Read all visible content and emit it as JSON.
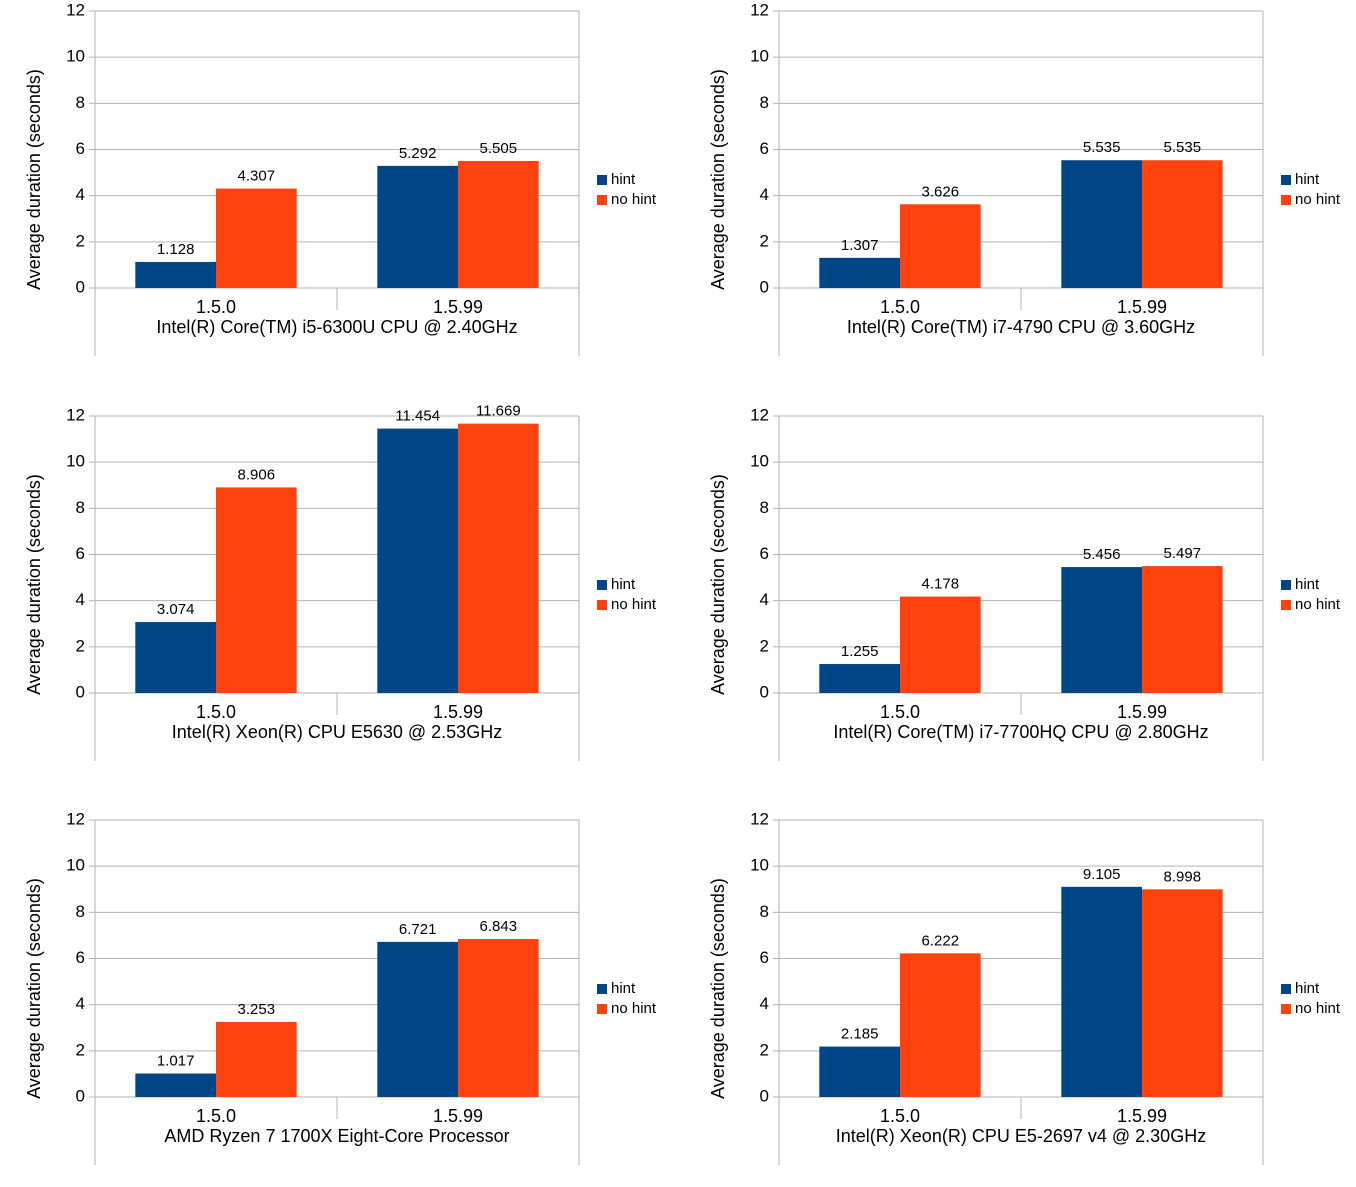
{
  "chart_data": [
    {
      "type": "bar",
      "ylabel": "Average duration (seconds)",
      "xlabel": "Intel(R) Core(TM) i5-6300U CPU @ 2.40GHz",
      "categories": [
        "1.5.0",
        "1.5.99"
      ],
      "series": [
        {
          "name": "hint",
          "color": "#004586",
          "values": [
            1.128,
            5.292
          ]
        },
        {
          "name": "no hint",
          "color": "#ff420e",
          "values": [
            4.307,
            5.505
          ]
        }
      ],
      "ylim": [
        0,
        12
      ],
      "yticks": [
        0,
        2,
        4,
        6,
        8,
        10,
        12
      ],
      "grid": true
    },
    {
      "type": "bar",
      "ylabel": "Average duration (seconds)",
      "xlabel": "Intel(R) Core(TM) i7-4790 CPU @ 3.60GHz",
      "categories": [
        "1.5.0",
        "1.5.99"
      ],
      "series": [
        {
          "name": "hint",
          "color": "#004586",
          "values": [
            1.307,
            5.535
          ]
        },
        {
          "name": "no hint",
          "color": "#ff420e",
          "values": [
            3.626,
            5.535
          ]
        }
      ],
      "ylim": [
        0,
        12
      ],
      "yticks": [
        0,
        2,
        4,
        6,
        8,
        10,
        12
      ],
      "grid": true
    },
    {
      "type": "bar",
      "ylabel": "Average duration (seconds)",
      "xlabel": "Intel(R) Xeon(R) CPU E5630 @ 2.53GHz",
      "categories": [
        "1.5.0",
        "1.5.99"
      ],
      "series": [
        {
          "name": "hint",
          "color": "#004586",
          "values": [
            3.074,
            11.454
          ]
        },
        {
          "name": "no hint",
          "color": "#ff420e",
          "values": [
            8.906,
            11.669
          ]
        }
      ],
      "ylim": [
        0,
        12
      ],
      "yticks": [
        0,
        2,
        4,
        6,
        8,
        10,
        12
      ],
      "grid": true
    },
    {
      "type": "bar",
      "ylabel": "Average duration (seconds)",
      "xlabel": "Intel(R) Core(TM) i7-7700HQ CPU @ 2.80GHz",
      "categories": [
        "1.5.0",
        "1.5.99"
      ],
      "series": [
        {
          "name": "hint",
          "color": "#004586",
          "values": [
            1.255,
            5.456
          ]
        },
        {
          "name": "no hint",
          "color": "#ff420e",
          "values": [
            4.178,
            5.497
          ]
        }
      ],
      "ylim": [
        0,
        12
      ],
      "yticks": [
        0,
        2,
        4,
        6,
        8,
        10,
        12
      ],
      "grid": true
    },
    {
      "type": "bar",
      "ylabel": "Average duration (seconds)",
      "xlabel": "AMD Ryzen 7 1700X Eight-Core Processor",
      "categories": [
        "1.5.0",
        "1.5.99"
      ],
      "series": [
        {
          "name": "hint",
          "color": "#004586",
          "values": [
            1.017,
            6.721
          ]
        },
        {
          "name": "no hint",
          "color": "#ff420e",
          "values": [
            3.253,
            6.843
          ]
        }
      ],
      "ylim": [
        0,
        12
      ],
      "yticks": [
        0,
        2,
        4,
        6,
        8,
        10,
        12
      ],
      "grid": true
    },
    {
      "type": "bar",
      "ylabel": "Average duration (seconds)",
      "xlabel": "Intel(R) Xeon(R) CPU E5-2697 v4 @ 2.30GHz",
      "categories": [
        "1.5.0",
        "1.5.99"
      ],
      "series": [
        {
          "name": "hint",
          "color": "#004586",
          "values": [
            2.185,
            9.105
          ]
        },
        {
          "name": "no hint",
          "color": "#ff420e",
          "values": [
            6.222,
            8.998
          ]
        }
      ],
      "ylim": [
        0,
        12
      ],
      "yticks": [
        0,
        2,
        4,
        6,
        8,
        10,
        12
      ],
      "grid": true
    }
  ]
}
